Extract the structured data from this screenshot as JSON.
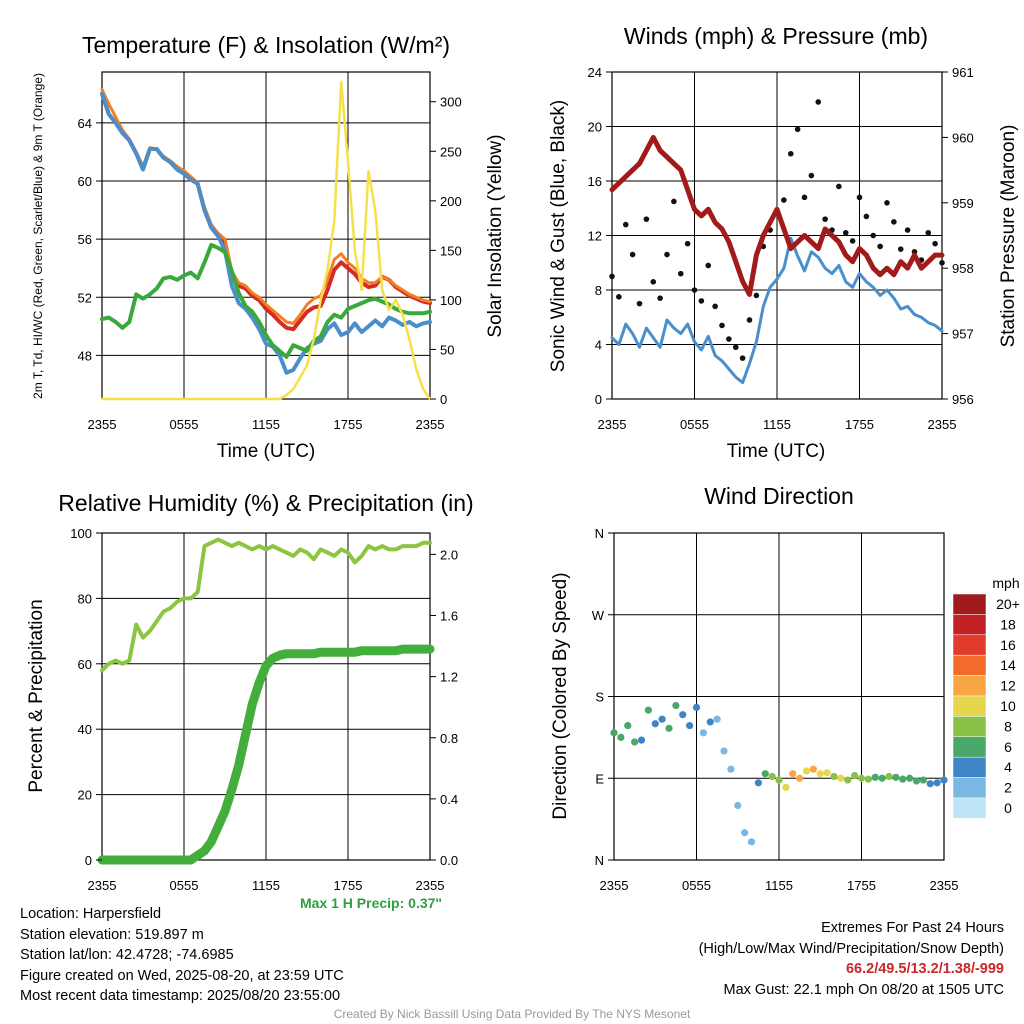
{
  "time_ticks": [
    "2355",
    "0555",
    "1155",
    "1755",
    "2355"
  ],
  "chart_data": [
    {
      "type": "line",
      "title": "Temperature (F) & Insolation (W/m²)",
      "xlabel": "Time (UTC)",
      "ylabel": "2m T, Td, HI/WC (Red, Green, Scarlet/Blue) & 9m T (Orange)",
      "ylabel_right": "Solar Insolation (Yellow)",
      "ylim": [
        45,
        67.5
      ],
      "ylim_right": [
        0,
        330
      ],
      "yticks": [
        48,
        52,
        56,
        60,
        64
      ],
      "yticks_right": [
        0,
        50,
        100,
        150,
        200,
        250,
        300
      ],
      "x_hours": [
        0,
        0.5,
        1,
        1.5,
        2,
        2.5,
        3,
        3.5,
        4,
        4.5,
        5,
        5.5,
        6,
        6.5,
        7,
        7.5,
        8,
        8.5,
        9,
        9.5,
        10,
        10.5,
        11,
        11.5,
        12,
        12.5,
        13,
        13.5,
        14,
        14.5,
        15,
        15.5,
        16,
        16.5,
        17,
        17.5,
        18,
        18.5,
        19,
        19.5,
        20,
        20.5,
        21,
        21.5,
        22,
        22.5,
        23,
        23.5,
        24
      ],
      "series": [
        {
          "name": "2m T",
          "color": "#d62a26",
          "axis": "left",
          "width": 4,
          "values": [
            66.0,
            64.6,
            64.0,
            63.3,
            62.8,
            61.9,
            60.8,
            62.2,
            62.2,
            61.6,
            61.3,
            60.8,
            60.5,
            60.1,
            59.8,
            58.0,
            56.8,
            56.2,
            55.8,
            53.6,
            52.8,
            52.6,
            52.1,
            51.8,
            51.2,
            50.8,
            50.3,
            49.9,
            49.8,
            50.4,
            51.0,
            51.3,
            51.4,
            52.5,
            53.9,
            54.4,
            54.0,
            53.6,
            53.0,
            52.7,
            52.8,
            53.4,
            53.2,
            52.7,
            52.4,
            52.1,
            51.9,
            51.7,
            51.6
          ]
        },
        {
          "name": "9m T",
          "color": "#f57f20",
          "axis": "left",
          "width": 3,
          "values": [
            66.3,
            65.3,
            64.4,
            63.5,
            62.9,
            62.0,
            61.0,
            62.3,
            62.2,
            61.7,
            61.4,
            61.0,
            60.7,
            60.3,
            59.9,
            58.2,
            57.0,
            56.4,
            56.0,
            53.8,
            53.0,
            52.8,
            52.3,
            52.0,
            51.5,
            51.1,
            50.7,
            50.3,
            50.2,
            50.8,
            51.5,
            51.9,
            52.1,
            53.2,
            54.6,
            55.0,
            54.4,
            54.0,
            53.3,
            53.0,
            53.0,
            53.4,
            53.2,
            52.8,
            52.5,
            52.2,
            52.0,
            51.8,
            51.7
          ]
        },
        {
          "name": "Heat Index / Wind Chill",
          "color": "#4a8fcc",
          "axis": "left",
          "width": 4,
          "values": [
            66.0,
            64.6,
            64.0,
            63.3,
            62.8,
            61.9,
            60.8,
            62.2,
            62.2,
            61.6,
            61.3,
            60.8,
            60.5,
            60.1,
            59.8,
            58.0,
            56.8,
            56.2,
            55.2,
            52.8,
            51.6,
            51.2,
            50.6,
            49.8,
            48.8,
            48.6,
            48.0,
            46.8,
            47.0,
            47.8,
            48.5,
            48.8,
            49.0,
            49.8,
            50.2,
            49.4,
            49.6,
            50.2,
            49.6,
            50.0,
            50.4,
            50.0,
            50.6,
            50.4,
            50.1,
            50.3,
            50.0,
            50.2,
            50.3
          ]
        },
        {
          "name": "Dewpoint",
          "color": "#3aa83a",
          "axis": "left",
          "width": 4,
          "values": [
            50.5,
            50.6,
            50.3,
            49.9,
            50.3,
            52.2,
            51.9,
            52.2,
            52.6,
            53.3,
            53.4,
            53.2,
            53.5,
            53.7,
            53.3,
            54.4,
            55.6,
            55.4,
            55.1,
            53.8,
            52.3,
            51.4,
            51.0,
            50.3,
            49.4,
            48.7,
            48.3,
            47.9,
            48.7,
            48.5,
            48.3,
            49.0,
            49.3,
            50.3,
            50.8,
            50.6,
            51.2,
            51.4,
            51.6,
            51.8,
            51.9,
            51.7,
            51.5,
            51.2,
            51.0,
            50.9,
            50.9,
            50.9,
            51.0
          ]
        },
        {
          "name": "Solar Insolation",
          "color": "#f5e04a",
          "axis": "right",
          "width": 2.5,
          "values": [
            0,
            0,
            0,
            0,
            0,
            0,
            0,
            0,
            0,
            0,
            0,
            0,
            0,
            0,
            0,
            0,
            0,
            0,
            0,
            0,
            0,
            0,
            0,
            0,
            0,
            0,
            0,
            4,
            10,
            22,
            34,
            60,
            100,
            130,
            180,
            320,
            240,
            150,
            110,
            230,
            190,
            110,
            90,
            100,
            85,
            60,
            30,
            10,
            0
          ]
        }
      ]
    },
    {
      "type": "line+scatter",
      "title": "Winds (mph) & Pressure (mb)",
      "xlabel": "Time (UTC)",
      "ylabel": "Sonic Wind & Gust (Blue, Black)",
      "ylabel_right": "Station Pressure (Maroon)",
      "ylim": [
        0,
        24
      ],
      "ylim_right": [
        956,
        961
      ],
      "yticks": [
        0,
        4,
        8,
        12,
        16,
        20,
        24
      ],
      "yticks_right": [
        956,
        957,
        958,
        959,
        960,
        961
      ],
      "x_hours": [
        0,
        0.5,
        1,
        1.5,
        2,
        2.5,
        3,
        3.5,
        4,
        4.5,
        5,
        5.5,
        6,
        6.5,
        7,
        7.5,
        8,
        8.5,
        9,
        9.5,
        10,
        10.5,
        11,
        11.5,
        12,
        12.5,
        13,
        13.5,
        14,
        14.5,
        15,
        15.5,
        16,
        16.5,
        17,
        17.5,
        18,
        18.5,
        19,
        19.5,
        20,
        20.5,
        21,
        21.5,
        22,
        22.5,
        23,
        23.5,
        24
      ],
      "series": [
        {
          "name": "Sonic Wind",
          "color": "#4a8fcc",
          "axis": "left",
          "width": 3,
          "values": [
            4.5,
            4.0,
            5.5,
            4.8,
            3.8,
            5.2,
            4.5,
            3.8,
            5.8,
            5.2,
            4.8,
            5.5,
            4.2,
            3.6,
            4.6,
            3.2,
            2.8,
            2.2,
            1.6,
            1.2,
            2.6,
            4.2,
            6.8,
            8.2,
            8.8,
            9.6,
            11.8,
            10.5,
            9.4,
            10.8,
            10.4,
            9.6,
            9.2,
            9.8,
            8.6,
            8.2,
            9.2,
            8.6,
            8.2,
            7.6,
            8.0,
            7.4,
            6.6,
            6.8,
            6.2,
            6.0,
            5.6,
            5.4,
            5.0
          ]
        },
        {
          "name": "Gust",
          "color": "#111111",
          "axis": "left",
          "type": "scatter",
          "values": [
            9.0,
            7.5,
            12.8,
            10.6,
            7.0,
            13.2,
            8.6,
            7.4,
            10.6,
            14.5,
            9.2,
            11.4,
            8.0,
            7.2,
            9.8,
            6.8,
            5.4,
            4.4,
            3.8,
            3.0,
            5.8,
            7.6,
            11.2,
            12.4,
            13.6,
            14.6,
            18.0,
            19.8,
            14.8,
            16.4,
            21.8,
            13.2,
            12.4,
            15.6,
            12.2,
            11.6,
            14.8,
            13.4,
            12.0,
            11.2,
            14.4,
            13.0,
            11.0,
            12.4,
            10.8,
            10.2,
            12.2,
            11.4,
            10.0
          ]
        },
        {
          "name": "Station Pressure",
          "color": "#a31a1a",
          "axis": "right",
          "width": 5,
          "values": [
            959.2,
            959.3,
            959.4,
            959.5,
            959.6,
            959.8,
            960.0,
            959.8,
            959.7,
            959.6,
            959.5,
            959.2,
            958.9,
            958.8,
            958.9,
            958.7,
            958.6,
            958.4,
            958.1,
            957.8,
            957.6,
            958.2,
            958.5,
            958.7,
            958.9,
            958.6,
            958.3,
            958.4,
            958.5,
            958.4,
            958.3,
            958.6,
            958.5,
            958.4,
            958.2,
            958.1,
            958.3,
            958.2,
            958.0,
            957.9,
            958.0,
            957.9,
            958.1,
            958.0,
            958.2,
            958.0,
            958.1,
            958.2,
            958.2
          ]
        }
      ]
    },
    {
      "type": "line",
      "title": "Relative Humidity (%) & Precipitation (in)",
      "xlabel": "",
      "ylabel": "Percent & Precipitation",
      "ylim": [
        0,
        100
      ],
      "ylim_right": [
        0,
        2.14
      ],
      "yticks": [
        0,
        20,
        40,
        60,
        80,
        100
      ],
      "yticks_right": [
        "0.0",
        "0.4",
        "0.8",
        "1.2",
        "1.6",
        "2.0"
      ],
      "x_hours": [
        0,
        0.5,
        1,
        1.5,
        2,
        2.5,
        3,
        3.5,
        4,
        4.5,
        5,
        5.5,
        6,
        6.5,
        7,
        7.5,
        8,
        8.5,
        9,
        9.5,
        10,
        10.5,
        11,
        11.5,
        12,
        12.5,
        13,
        13.5,
        14,
        14.5,
        15,
        15.5,
        16,
        16.5,
        17,
        17.5,
        18,
        18.5,
        19,
        19.5,
        20,
        20.5,
        21,
        21.5,
        22,
        22.5,
        23,
        23.5,
        24
      ],
      "series": [
        {
          "name": "Relative Humidity",
          "color": "#8cc640",
          "axis": "left",
          "width": 4,
          "values": [
            58,
            60,
            61,
            60,
            61,
            72,
            68,
            70,
            73,
            76,
            77,
            79,
            80,
            80,
            82,
            96,
            97,
            98,
            97,
            96,
            97,
            96,
            95,
            96,
            95,
            96,
            95,
            94,
            93,
            95,
            94,
            92,
            95,
            94,
            93,
            95,
            94,
            91,
            93,
            96,
            95,
            96,
            95,
            95,
            96,
            96,
            96,
            97,
            97
          ]
        },
        {
          "name": "Precipitation",
          "color": "#44ae3c",
          "axis": "right",
          "width": 9,
          "values": [
            0,
            0,
            0,
            0,
            0,
            0,
            0,
            0,
            0,
            0,
            0,
            0,
            0,
            0,
            0.03,
            0.06,
            0.12,
            0.22,
            0.32,
            0.46,
            0.62,
            0.82,
            1.02,
            1.16,
            1.27,
            1.32,
            1.34,
            1.35,
            1.35,
            1.35,
            1.35,
            1.35,
            1.36,
            1.36,
            1.36,
            1.36,
            1.36,
            1.36,
            1.37,
            1.37,
            1.37,
            1.37,
            1.37,
            1.37,
            1.38,
            1.38,
            1.38,
            1.38,
            1.38
          ]
        }
      ]
    },
    {
      "type": "scatter",
      "title": "Wind Direction",
      "xlabel": "",
      "ylabel": "Direction (Colored By Speed)",
      "yticks": [
        "N",
        "E",
        "S",
        "W",
        "N"
      ],
      "ylim": [
        0,
        360
      ],
      "x_hours": [
        0,
        0.5,
        1,
        1.5,
        2,
        2.5,
        3,
        3.5,
        4,
        4.5,
        5,
        5.5,
        6,
        6.5,
        7,
        7.5,
        8,
        8.5,
        9,
        9.5,
        10,
        10.5,
        11,
        11.5,
        12,
        12.5,
        13,
        13.5,
        14,
        14.5,
        15,
        15.5,
        16,
        16.5,
        17,
        17.5,
        18,
        18.5,
        19,
        19.5,
        20,
        20.5,
        21,
        21.5,
        22,
        22.5,
        23,
        23.5,
        24
      ],
      "direction_deg": [
        140,
        135,
        148,
        130,
        132,
        165,
        150,
        155,
        145,
        170,
        160,
        148,
        168,
        140,
        152,
        155,
        120,
        100,
        60,
        30,
        20,
        85,
        95,
        92,
        88,
        80,
        95,
        90,
        98,
        100,
        95,
        96,
        92,
        90,
        88,
        93,
        90,
        89,
        91,
        90,
        92,
        91,
        89,
        90,
        87,
        88,
        84,
        85,
        88
      ],
      "speed_mph": [
        5,
        5,
        6,
        5,
        4,
        5,
        4,
        4,
        5,
        5,
        4,
        4,
        3,
        2,
        3,
        2,
        2,
        1,
        1,
        1,
        2,
        3,
        6,
        7,
        8,
        9,
        12,
        11,
        10,
        11,
        10,
        9,
        8,
        9,
        8,
        7,
        8,
        7,
        6,
        6,
        7,
        6,
        5,
        6,
        5,
        5,
        4,
        4,
        4
      ],
      "colorbar": {
        "title": "mph",
        "labels": [
          "20+",
          "18",
          "16",
          "14",
          "12",
          "10",
          "8",
          "6",
          "4",
          "2",
          "0"
        ],
        "colors": [
          "#a01c1c",
          "#c32026",
          "#e13b2c",
          "#f26a2c",
          "#f8a543",
          "#e7d64d",
          "#88c048",
          "#4aa76a",
          "#3f85c6",
          "#7ab8e3",
          "#bfe4f6"
        ]
      }
    }
  ],
  "info": {
    "location": "Location: Harpersfield",
    "elevation": "Station elevation: 519.897 m",
    "latlon": "Station lat/lon: 42.4728; -74.6985",
    "created": "Figure created on Wed, 2025-08-20, at 23:59 UTC",
    "recent": "Most recent data timestamp: 2025/08/20 23:55:00"
  },
  "precip_max": "Max 1 H Precip: 0.37\"",
  "extremes": {
    "heading": "Extremes For Past 24 Hours",
    "legend": "(High/Low/Max Wind/Precipitation/Snow Depth)",
    "values": "66.2/49.5/13.2/1.38/-999",
    "gust": "Max Gust: 22.1 mph On 08/20 at 1505 UTC"
  },
  "credit": "Created By Nick Bassill Using Data Provided By The NYS Mesonet"
}
